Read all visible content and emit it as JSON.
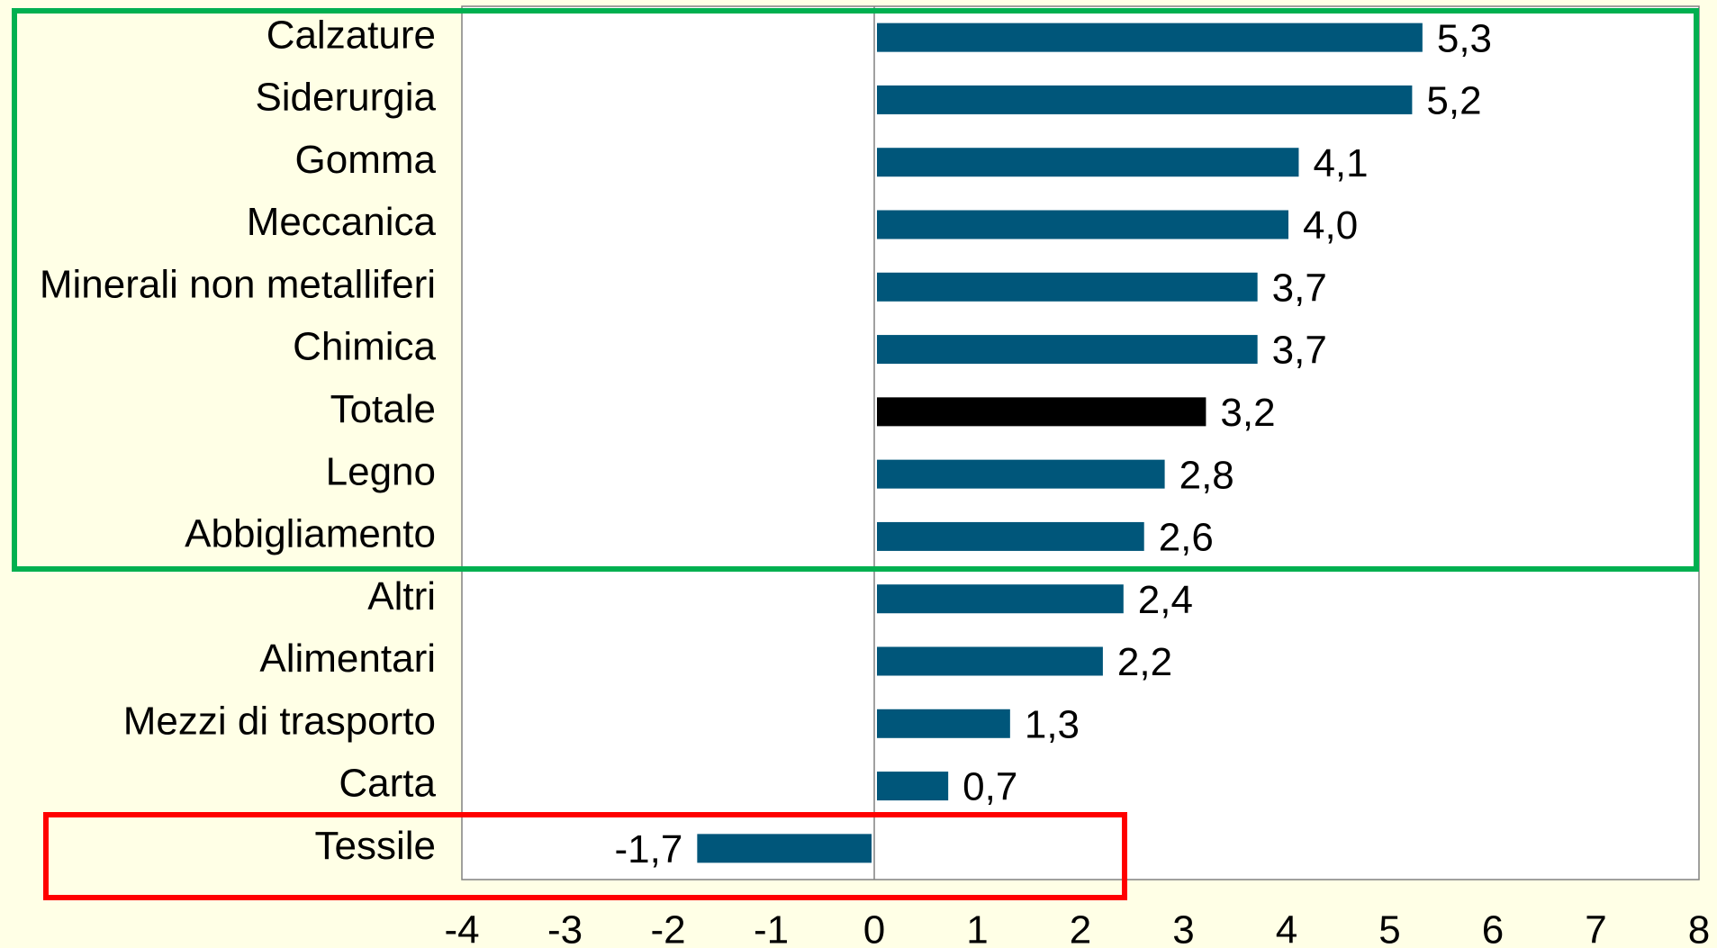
{
  "chart_data": {
    "type": "barh",
    "categories": [
      "Calzature",
      "Siderurgia",
      "Gomma",
      "Meccanica",
      "Minerali non metalliferi",
      "Chimica",
      "Totale",
      "Legno",
      "Abbigliamento",
      "Altri",
      "Alimentari",
      "Mezzi di trasporto",
      "Carta",
      "Tessile"
    ],
    "values": [
      5.3,
      5.2,
      4.1,
      4.0,
      3.7,
      3.7,
      3.2,
      2.8,
      2.6,
      2.4,
      2.2,
      1.3,
      0.7,
      -1.7
    ],
    "value_labels": [
      "5,3",
      "5,2",
      "4,1",
      "4,0",
      "3,7",
      "3,7",
      "3,2",
      "2,8",
      "2,6",
      "2,4",
      "2,2",
      "1,3",
      "0,7",
      "-1,7"
    ],
    "colors": [
      "#00567a",
      "#00567a",
      "#00567a",
      "#00567a",
      "#00567a",
      "#00567a",
      "#000000",
      "#00567a",
      "#00567a",
      "#00567a",
      "#00567a",
      "#00567a",
      "#00567a",
      "#00567a"
    ],
    "xlim": [
      -4,
      8
    ],
    "xticks": [
      -4,
      -3,
      -2,
      -1,
      0,
      1,
      2,
      3,
      4,
      5,
      6,
      7,
      8
    ],
    "grid": false
  }
}
